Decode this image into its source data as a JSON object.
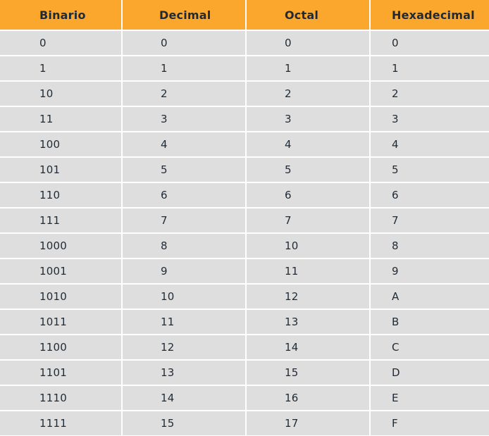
{
  "table": {
    "header_color": "#fba72e",
    "row_color": "#dedede",
    "columns": [
      "Binario",
      "Decimal",
      "Octal",
      "Hexadecimal"
    ],
    "rows": [
      [
        "0",
        "0",
        "0",
        "0"
      ],
      [
        "1",
        "1",
        "1",
        "1"
      ],
      [
        "10",
        "2",
        "2",
        "2"
      ],
      [
        "11",
        "3",
        "3",
        "3"
      ],
      [
        "100",
        "4",
        "4",
        "4"
      ],
      [
        "101",
        "5",
        "5",
        "5"
      ],
      [
        "110",
        "6",
        "6",
        "6"
      ],
      [
        "111",
        "7",
        "7",
        "7"
      ],
      [
        "1000",
        "8",
        "10",
        "8"
      ],
      [
        "1001",
        "9",
        "11",
        "9"
      ],
      [
        "1010",
        "10",
        "12",
        "A"
      ],
      [
        "1011",
        "11",
        "13",
        "B"
      ],
      [
        "1100",
        "12",
        "14",
        "C"
      ],
      [
        "1101",
        "13",
        "15",
        "D"
      ],
      [
        "1110",
        "14",
        "16",
        "E"
      ],
      [
        "1111",
        "15",
        "17",
        "F"
      ]
    ]
  }
}
